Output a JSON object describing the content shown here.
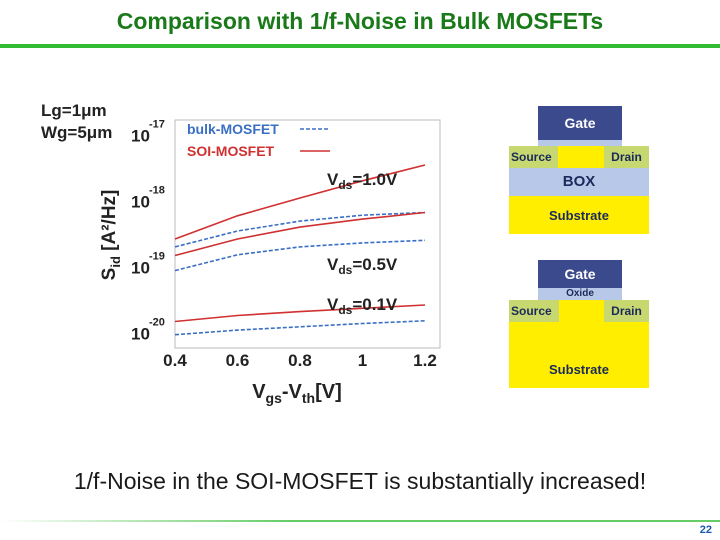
{
  "title": "Comparison with 1/f-Noise in Bulk MOSFETs",
  "footer_text": "1/f-Noise in the SOI-MOSFET is substantially increased!",
  "page_number": "22",
  "chart_data": {
    "type": "line",
    "xlabel": "Vgs-Vth[V]",
    "ylabel": "Sid [A²/Hz]",
    "x_ticks": [
      "0.4",
      "0.6",
      "0.8",
      "1",
      "1.2"
    ],
    "y_ticks": [
      {
        "base": "10",
        "exp": "-17"
      },
      {
        "base": "10",
        "exp": "-18"
      },
      {
        "base": "10",
        "exp": "-19"
      },
      {
        "base": "10",
        "exp": "-20"
      }
    ],
    "xlim": [
      0.4,
      1.2
    ],
    "ylim_log10": [
      -20.1,
      -16.95
    ],
    "log_y": true,
    "device_params": [
      "Lg=1μm",
      "Wg=5μm"
    ],
    "legend": [
      {
        "label": "bulk-MOSFET",
        "color": "#3a6fc4",
        "dash": true
      },
      {
        "label": "SOI-MOSFET",
        "color": "#d03030",
        "dash": false
      }
    ],
    "annotations": [
      "Vds=1.0V",
      "Vds=0.5V",
      "Vds=0.1V"
    ],
    "series": [
      {
        "group": "bulk-MOSFET",
        "vds": "1.0V",
        "x": [
          0.4,
          0.6,
          0.8,
          1.0,
          1.2
        ],
        "y_log10": [
          -18.72,
          -18.48,
          -18.33,
          -18.24,
          -18.2
        ]
      },
      {
        "group": "bulk-MOSFET",
        "vds": "0.5V",
        "x": [
          0.4,
          0.6,
          0.8,
          1.0,
          1.2
        ],
        "y_log10": [
          -19.08,
          -18.84,
          -18.72,
          -18.66,
          -18.62
        ]
      },
      {
        "group": "bulk-MOSFET",
        "vds": "0.1V",
        "x": [
          0.4,
          0.6,
          0.8,
          1.0,
          1.2
        ],
        "y_log10": [
          -20.05,
          -19.98,
          -19.93,
          -19.88,
          -19.84
        ]
      },
      {
        "group": "SOI-MOSFET",
        "vds": "1.0V",
        "x": [
          0.4,
          0.6,
          0.8,
          1.0,
          1.2
        ],
        "y_log10": [
          -18.6,
          -18.25,
          -17.98,
          -17.72,
          -17.48
        ]
      },
      {
        "group": "SOI-MOSFET",
        "vds": "0.5V",
        "x": [
          0.4,
          0.6,
          0.8,
          1.0,
          1.2
        ],
        "y_log10": [
          -18.85,
          -18.6,
          -18.42,
          -18.3,
          -18.2
        ]
      },
      {
        "group": "SOI-MOSFET",
        "vds": "0.1V",
        "x": [
          0.4,
          0.6,
          0.8,
          1.0,
          1.2
        ],
        "y_log10": [
          -19.85,
          -19.76,
          -19.7,
          -19.65,
          -19.6
        ]
      }
    ]
  },
  "soi_diagram": {
    "gate": "Gate",
    "source": "Source",
    "drain": "Drain",
    "box": "BOX",
    "substrate": "Substrate",
    "colors": {
      "gate": "#3a4a8c",
      "sd": "#c8d870",
      "box": "#b8c8e8",
      "substrate": "#ffee00"
    }
  },
  "bulk_diagram": {
    "gate": "Gate",
    "oxide": "Oxide",
    "source": "Source",
    "drain": "Drain",
    "substrate": "Substrate"
  }
}
